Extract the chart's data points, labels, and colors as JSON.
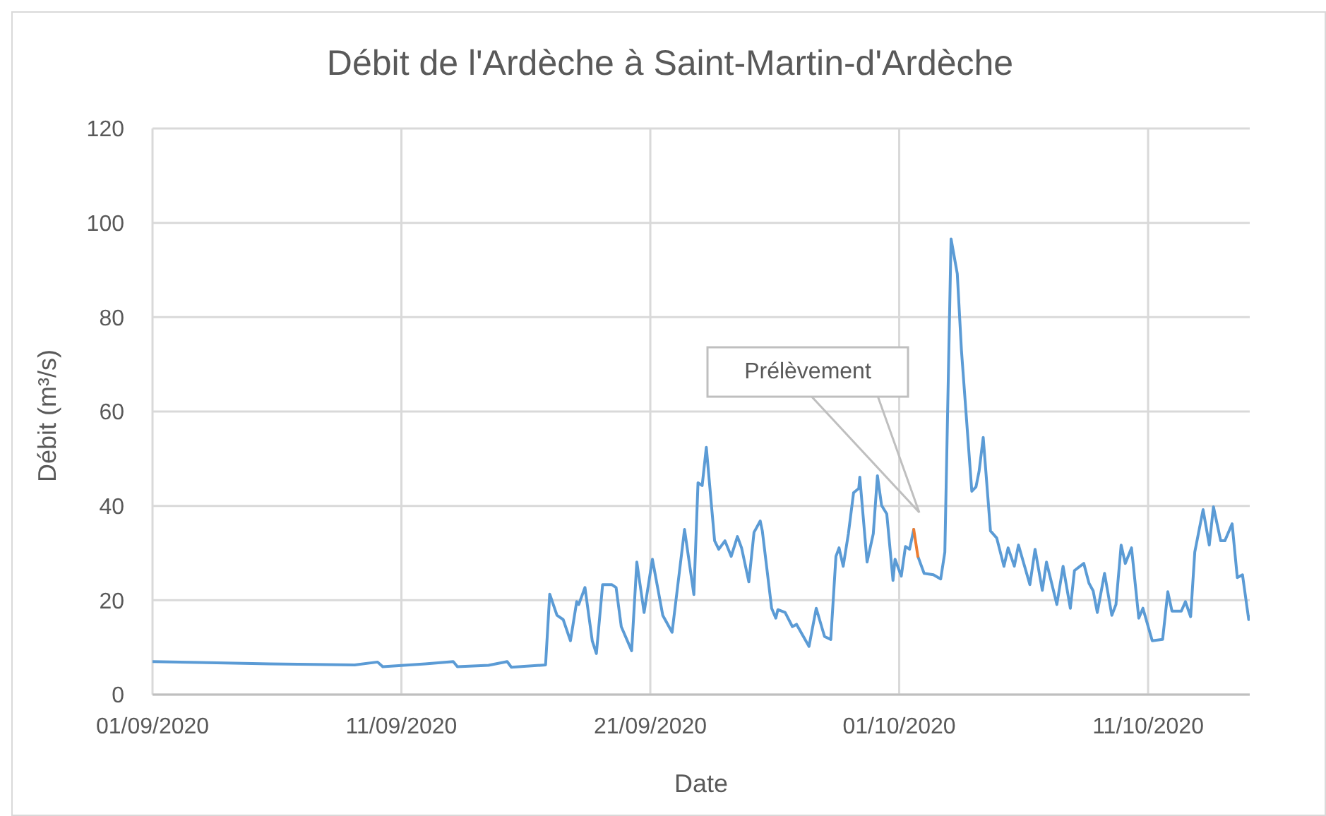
{
  "chart_data": {
    "type": "line",
    "title": "Débit de l'Ardèche à Saint-Martin-d'Ardèche",
    "xlabel": "Date",
    "ylabel": "Débit (m³/s)",
    "xlim": [
      "2020-09-01",
      "2020-10-15T02:00"
    ],
    "xticks": [
      {
        "value": "2020-09-01",
        "label": "01/09/2020"
      },
      {
        "value": "2020-09-11",
        "label": "11/09/2020"
      },
      {
        "value": "2020-09-21",
        "label": "21/09/2020"
      },
      {
        "value": "2020-10-01",
        "label": "01/10/2020"
      },
      {
        "value": "2020-10-11",
        "label": "11/10/2020"
      }
    ],
    "ylim": [
      0,
      120
    ],
    "yticks": [
      0,
      20,
      40,
      60,
      80,
      100,
      120
    ],
    "grid": true,
    "marker": "none",
    "line_style": "solid",
    "annotations": [
      "Prélèvement"
    ],
    "series": [
      {
        "color": "#5b9bd5",
        "x": [
          "2020-09-01",
          "2020-09-02T21:00",
          "2020-09-05T17:00",
          "2020-09-09T03:00",
          "2020-09-10T01:00",
          "2020-09-10T06:00",
          "2020-09-11T23:00",
          "2020-09-13T02:00",
          "2020-09-13T06:00",
          "2020-09-14T12:00",
          "2020-09-15T06:00",
          "2020-09-15T10:00",
          "2020-09-16T19:00",
          "2020-09-16T23:00",
          "2020-09-17T06:00",
          "2020-09-17T12:00",
          "2020-09-17T19:00",
          "2020-09-18T01:00",
          "2020-09-18T03:00",
          "2020-09-18T09:00",
          "2020-09-18T16:00",
          "2020-09-18T20:00",
          "2020-09-19T02:00",
          "2020-09-19T11:00",
          "2020-09-19T15:00",
          "2020-09-19T20:00",
          "2020-09-20T06:00",
          "2020-09-20T11:00",
          "2020-09-20T18:00",
          "2020-09-21T02:00",
          "2020-09-21T12:00",
          "2020-09-21T21:00",
          "2020-09-22T09:00",
          "2020-09-22T18:00",
          "2020-09-22T22:00",
          "2020-09-23T02:00",
          "2020-09-23T06:00",
          "2020-09-23T14:00",
          "2020-09-23T18:00",
          "2020-09-24T00:00",
          "2020-09-24T06:00",
          "2020-09-24T12:00",
          "2020-09-24T16:00",
          "2020-09-24T23:00",
          "2020-09-25T04:00",
          "2020-09-25T10:00",
          "2020-09-25T12:00",
          "2020-09-25T21:00",
          "2020-09-26T01:00",
          "2020-09-26T03:00",
          "2020-09-26T10:00",
          "2020-09-26T17:00",
          "2020-09-26T21:00",
          "2020-09-27T09:00",
          "2020-09-27T16:00",
          "2020-09-28T00:00",
          "2020-09-28T06:00",
          "2020-09-28T11:00",
          "2020-09-28T14:00",
          "2020-09-28T18:00",
          "2020-09-28T23:00",
          "2020-09-29T04:00",
          "2020-09-29T09:00",
          "2020-09-29T10:00",
          "2020-09-29T17:00",
          "2020-09-29T23:00",
          "2020-09-30T03:00",
          "2020-09-30T07:00",
          "2020-09-30T12:00",
          "2020-09-30T18:00",
          "2020-09-30T20:00",
          "2020-10-01T02:00",
          "2020-10-01T06:00",
          "2020-10-01T10:00",
          "2020-10-01T14:00",
          "2020-10-01T16:00",
          "2020-10-01T18:00",
          "2020-10-02T00:00",
          "2020-10-02T09:00",
          "2020-10-02T16:00",
          "2020-10-02T20:00",
          "2020-10-03T02:00",
          "2020-10-03T08:00",
          "2020-10-03T12:00",
          "2020-10-03T22:00",
          "2020-10-04T02:00",
          "2020-10-04T05:00",
          "2020-10-04T09:00",
          "2020-10-04T16:00",
          "2020-10-04T22:00",
          "2020-10-05T05:00",
          "2020-10-05T09:00",
          "2020-10-05T15:00",
          "2020-10-05T19:00",
          "2020-10-06T06:00",
          "2020-10-06T11:00",
          "2020-10-06T18:00",
          "2020-10-06T22:00",
          "2020-10-07T08:00",
          "2020-10-07T14:00",
          "2020-10-07T21:00",
          "2020-10-08T01:00",
          "2020-10-08T10:00",
          "2020-10-08T15:00",
          "2020-10-08T19:00",
          "2020-10-08T23:00",
          "2020-10-09T06:00",
          "2020-10-09T13:00",
          "2020-10-09T17:00",
          "2020-10-09T22:00",
          "2020-10-10T02:00",
          "2020-10-10T08:00",
          "2020-10-10T15:00",
          "2020-10-10T19:00",
          "2020-10-11T04:00",
          "2020-10-11T14:00",
          "2020-10-11T19:00",
          "2020-10-11T23:00",
          "2020-10-12T08:00",
          "2020-10-12T12:00",
          "2020-10-12T17:00",
          "2020-10-12T21:00",
          "2020-10-13T05:00",
          "2020-10-13T11:00",
          "2020-10-13T15:00",
          "2020-10-13T22:00",
          "2020-10-14T02:00",
          "2020-10-14T09:00",
          "2020-10-14T14:00",
          "2020-10-14T19:00",
          "2020-10-15T01:00",
          "2020-10-15T02:00"
        ],
        "values": [
          7.0,
          6.8,
          6.5,
          6.3,
          6.9,
          5.9,
          6.5,
          7.0,
          5.9,
          6.2,
          7.0,
          5.8,
          6.3,
          21.3,
          16.8,
          15.9,
          11.4,
          19.7,
          19.1,
          22.7,
          11.4,
          8.7,
          23.3,
          23.3,
          22.7,
          14.4,
          9.3,
          28.1,
          17.4,
          28.7,
          16.8,
          13.2,
          35.0,
          21.2,
          44.9,
          44.3,
          52.4,
          32.6,
          30.8,
          32.6,
          29.3,
          33.5,
          31.1,
          23.9,
          34.4,
          36.8,
          34.7,
          18.3,
          16.2,
          18.0,
          17.4,
          14.4,
          14.9,
          10.2,
          18.3,
          12.3,
          11.7,
          29.3,
          31.1,
          27.2,
          34.1,
          42.8,
          43.7,
          46.1,
          28.1,
          34.1,
          46.4,
          40.1,
          38.3,
          24.2,
          28.7,
          25.1,
          31.4,
          30.8,
          35.0,
          null,
          29.3,
          25.7,
          25.4,
          24.5,
          30.2,
          96.6,
          89.2,
          73.0,
          43.1,
          44.0,
          47.3,
          54.5,
          34.7,
          33.2,
          27.2,
          31.1,
          27.2,
          31.7,
          23.3,
          30.8,
          22.1,
          28.1,
          19.1,
          27.2,
          18.3,
          26.3,
          27.8,
          23.6,
          22.0,
          17.4,
          25.7,
          16.8,
          19.1,
          31.7,
          27.8,
          31.1,
          16.2,
          18.3,
          11.4,
          11.7,
          21.8,
          17.7,
          17.7,
          19.7,
          16.5,
          30.2,
          39.2,
          31.7,
          39.8,
          32.6,
          32.6,
          36.2,
          24.8,
          25.4,
          15.9,
          16.5
        ]
      },
      {
        "color": "#ed7d31",
        "x": [
          "2020-10-01T14:00",
          "2020-10-01T18:00"
        ],
        "values": [
          35.0,
          29.3
        ]
      }
    ]
  }
}
